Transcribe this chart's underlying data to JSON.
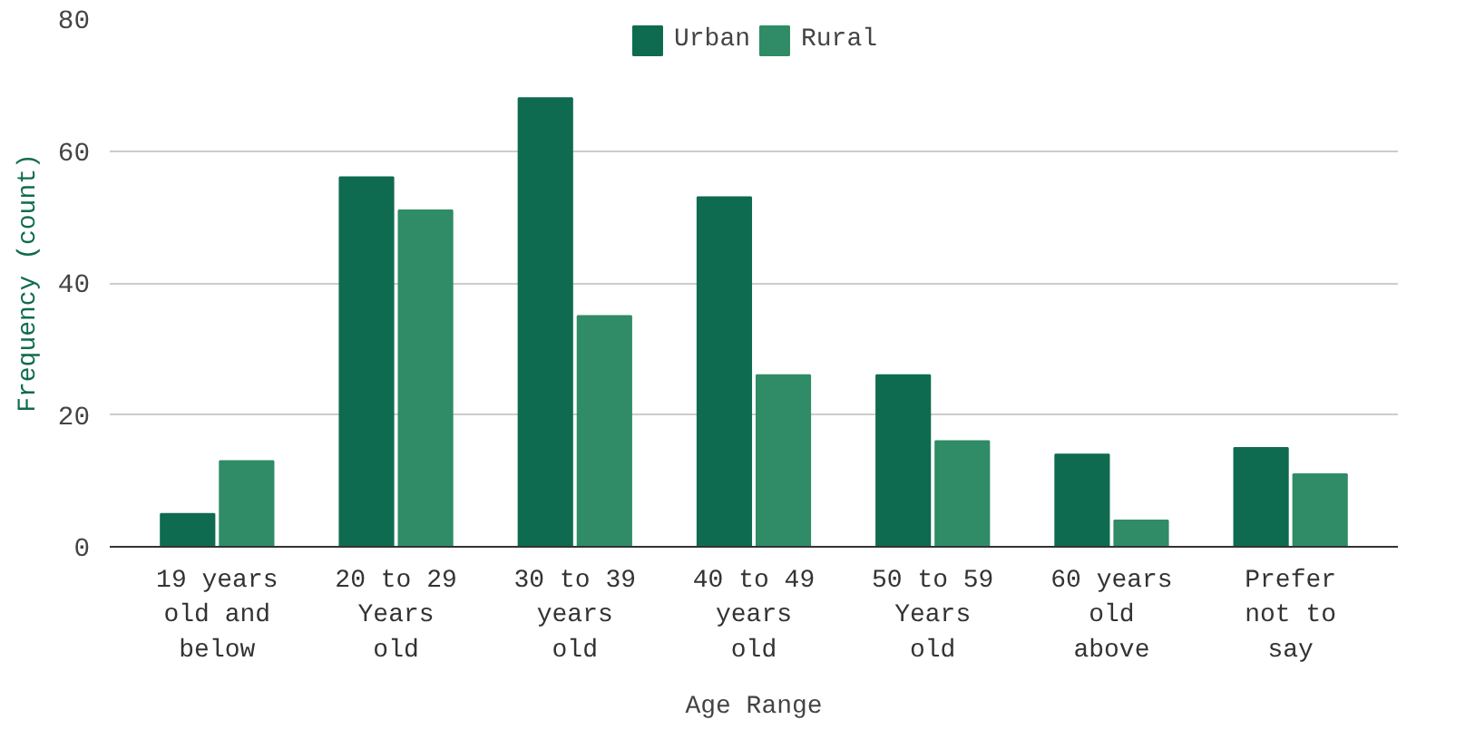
{
  "chart_data": {
    "type": "bar",
    "xlabel": "Age Range",
    "ylabel": "Frequency (count)",
    "categories": [
      "19 years old and below",
      "20 to 29 Years old",
      "30 to 39 years old",
      "40 to 49 years old",
      "50 to 59 Years old",
      "60 years old above",
      "Prefer not to say"
    ],
    "series": [
      {
        "name": "Urban",
        "color": "#0f6b4f",
        "values": [
          5,
          56,
          68,
          53,
          26,
          14,
          15
        ]
      },
      {
        "name": "Rural",
        "color": "#2f8c66",
        "values": [
          13,
          51,
          35,
          26,
          16,
          4,
          11
        ]
      }
    ],
    "ylim": [
      0,
      80
    ],
    "yticks": [
      0,
      20,
      40,
      60,
      80
    ],
    "grid": "y",
    "legend": "top"
  }
}
